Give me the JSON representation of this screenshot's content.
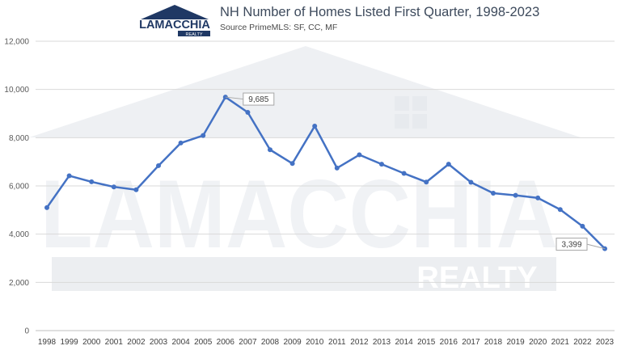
{
  "header": {
    "title": "NH Number of Homes Listed First Quarter, 1998-2023",
    "source": "Source PrimeMLS: SF, CC, MF"
  },
  "brand": {
    "logo_word": "LAMACCHIA",
    "logo_sub": "REALTY",
    "watermark_word": "LAMACCHIA",
    "watermark_sub": "REALTY",
    "navy": "#1f3864",
    "line_color": "#4472c4"
  },
  "chart_data": {
    "type": "line",
    "title": "NH Number of Homes Listed First Quarter, 1998-2023",
    "subtitle": "Source PrimeMLS: SF, CC, MF",
    "categories": [
      "1998",
      "1999",
      "2000",
      "2001",
      "2002",
      "2003",
      "2004",
      "2005",
      "2006",
      "2007",
      "2008",
      "2009",
      "2010",
      "2011",
      "2012",
      "2013",
      "2014",
      "2015",
      "2016",
      "2017",
      "2018",
      "2019",
      "2020",
      "2021",
      "2022",
      "2023"
    ],
    "series": [
      {
        "values": [
          5100,
          6420,
          6170,
          5960,
          5840,
          6840,
          7780,
          8090,
          9685,
          9050,
          7500,
          6930,
          8480,
          6740,
          7290,
          6900,
          6520,
          6160,
          6900,
          6150,
          5700,
          5610,
          5500,
          5020,
          4330,
          3399
        ]
      }
    ],
    "y_ticks": [
      "0",
      "2,000",
      "4,000",
      "6,000",
      "8,000",
      "10,000",
      "12,000"
    ],
    "ylim": [
      0,
      12000
    ],
    "grid": "horizontal",
    "annotations": [
      {
        "category": "2006",
        "label": "9,685"
      },
      {
        "category": "2023",
        "label": "3,399"
      }
    ]
  }
}
